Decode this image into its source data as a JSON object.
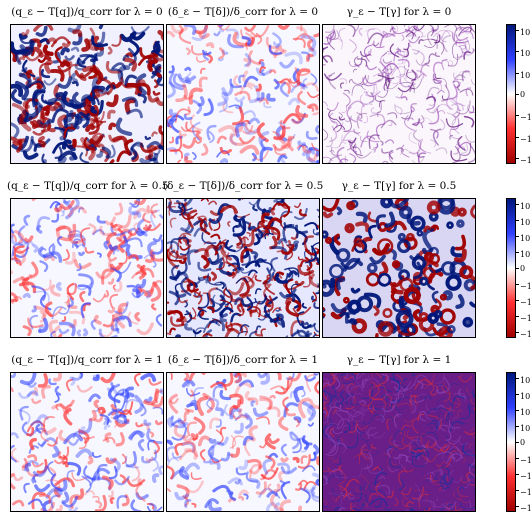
{
  "chart_data": [
    {
      "type": "heatmap",
      "title": "(q_ε − T[q])/q_corr for λ = 0",
      "colormap": "seismic_r",
      "texture": "swirl"
    },
    {
      "type": "heatmap",
      "title": "(δ_ε − T[δ])/δ_corr for λ = 0",
      "colormap": "seismic_r",
      "texture": "swirl-faint"
    },
    {
      "type": "heatmap",
      "title": "γ_ε − T[γ] for λ = 0",
      "colormap": "purple",
      "texture": "filament"
    },
    {
      "type": "heatmap",
      "title": "(q_ε − T[q])/q_corr for λ = 0.5",
      "colormap": "seismic_r",
      "texture": "swirl-faint"
    },
    {
      "type": "heatmap",
      "title": "(δ_ε − T[δ])/δ_corr for λ = 0.5",
      "colormap": "seismic_r",
      "texture": "dense"
    },
    {
      "type": "heatmap",
      "title": "γ_ε − T[γ] for λ = 0.5",
      "colormap": "seismic_r",
      "texture": "rings"
    },
    {
      "type": "heatmap",
      "title": "(q_ε − T[q])/q_corr for λ = 1",
      "colormap": "seismic_r",
      "texture": "swirl-faint"
    },
    {
      "type": "heatmap",
      "title": "(δ_ε − T[δ])/δ_corr for λ = 1",
      "colormap": "seismic_r",
      "texture": "swirl-faint"
    },
    {
      "type": "heatmap",
      "title": "γ_ε − T[γ] for λ = 1",
      "colormap": "purple-dense",
      "texture": "filament-dense"
    }
  ],
  "colorbars": [
    {
      "ticks": [
        {
          "base": "10",
          "exp": "−3"
        },
        {
          "base": "10",
          "exp": "−4"
        },
        {
          "base": "10",
          "exp": "−5"
        },
        {
          "base": "0",
          "exp": ""
        },
        {
          "base": "−10",
          "exp": "−5"
        },
        {
          "base": "−10",
          "exp": "−4"
        },
        {
          "base": "−10",
          "exp": "−3"
        }
      ]
    },
    {
      "ticks": [
        {
          "base": "10",
          "exp": "−4"
        },
        {
          "base": "10",
          "exp": "−5"
        },
        {
          "base": "10",
          "exp": "−6"
        },
        {
          "base": "10",
          "exp": "−7"
        },
        {
          "base": "0",
          "exp": ""
        },
        {
          "base": "−10",
          "exp": "−7"
        },
        {
          "base": "−10",
          "exp": "−6"
        },
        {
          "base": "−10",
          "exp": "−5"
        },
        {
          "base": "−10",
          "exp": "−4"
        }
      ]
    },
    {
      "ticks": [
        {
          "base": "10",
          "exp": "−2"
        },
        {
          "base": "10",
          "exp": "−3"
        },
        {
          "base": "10",
          "exp": "−4"
        },
        {
          "base": "10",
          "exp": "−5"
        },
        {
          "base": "0",
          "exp": ""
        },
        {
          "base": "−10",
          "exp": "−5"
        },
        {
          "base": "−10",
          "exp": "−4"
        },
        {
          "base": "−10",
          "exp": "−3"
        },
        {
          "base": "−10",
          "exp": "−2"
        }
      ]
    }
  ],
  "colors": {
    "blue": "#00177a",
    "red": "#a00000",
    "white": "#ffffff",
    "purple": "#5a0a7a"
  }
}
